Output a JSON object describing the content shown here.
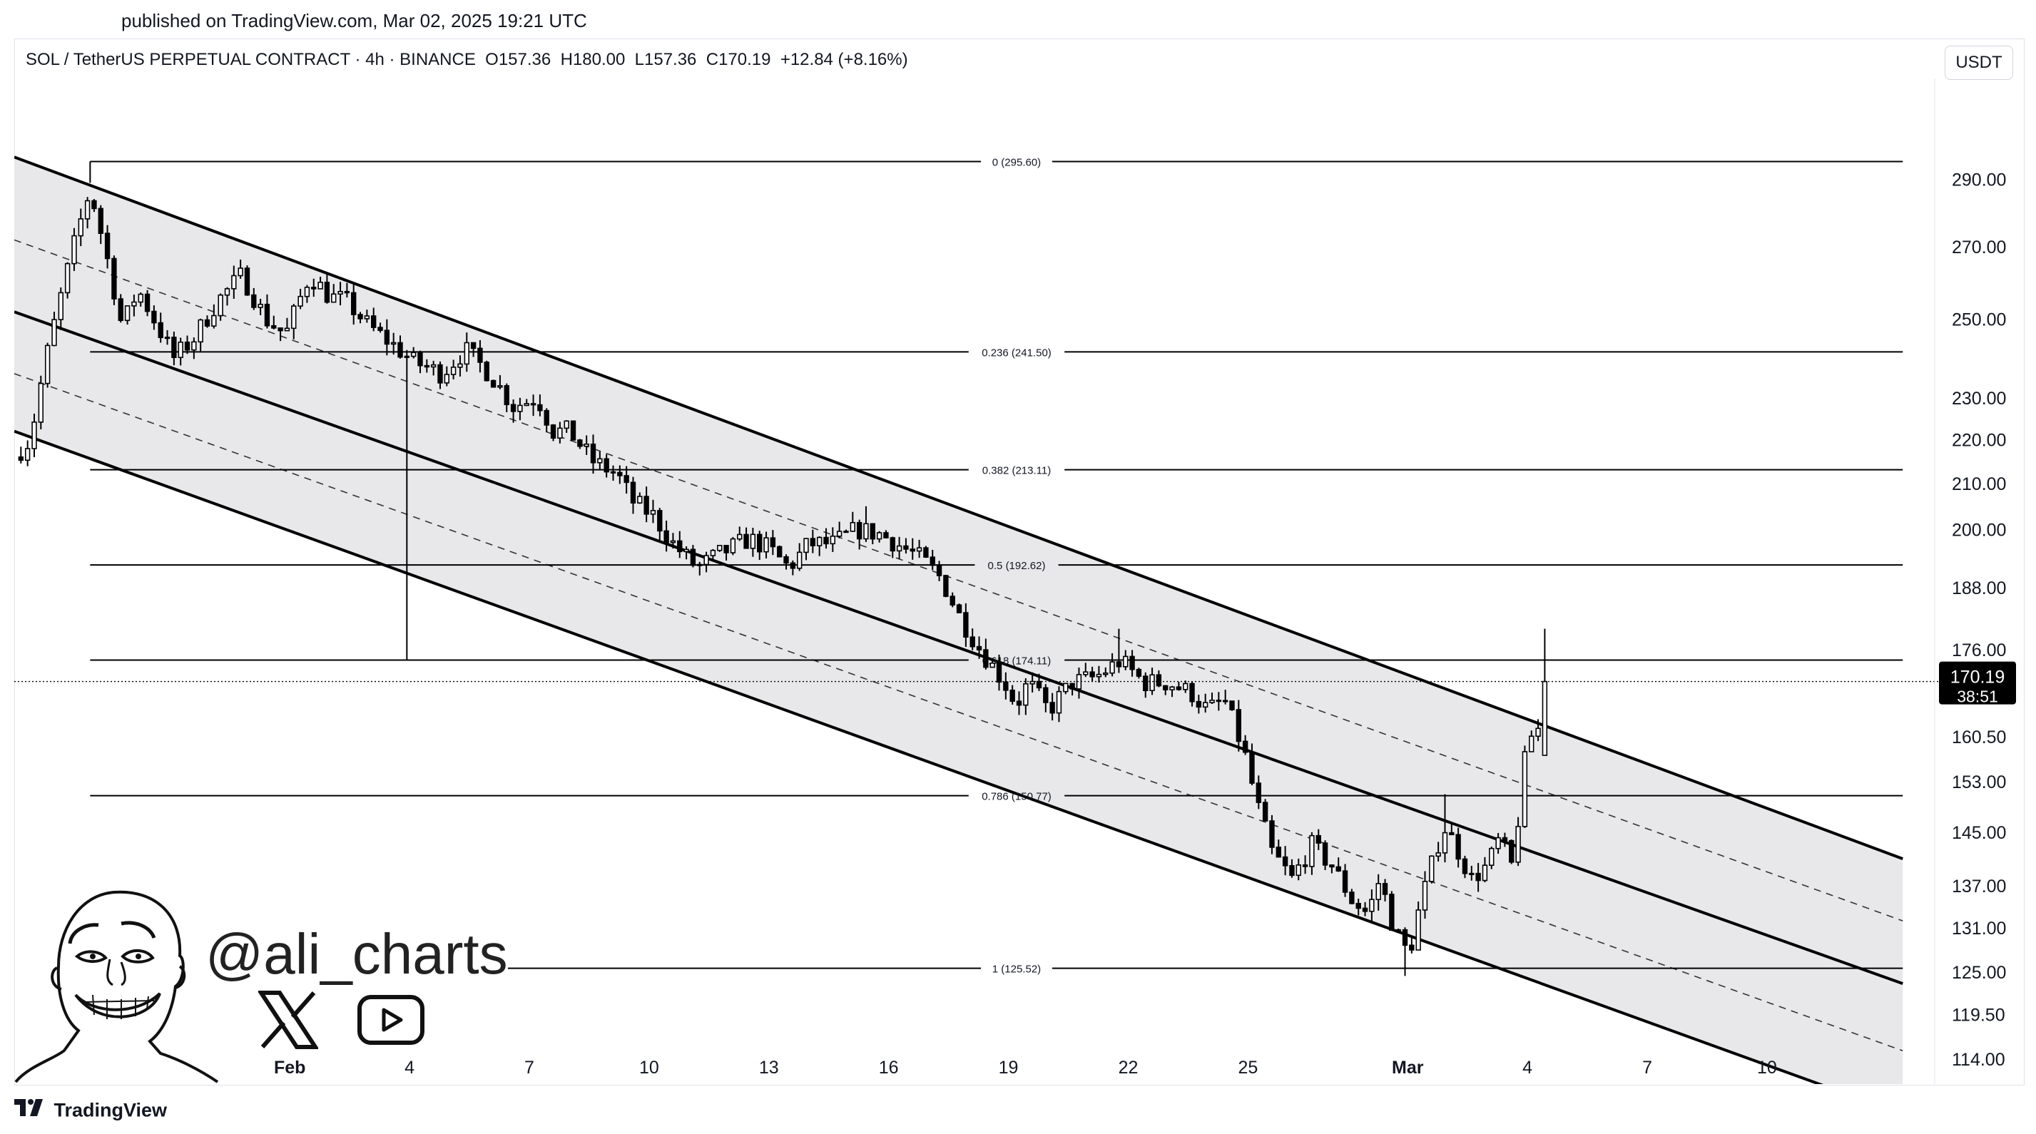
{
  "header": {
    "published": "published on TradingView.com, Mar 02, 2025 19:21 UTC",
    "symbol_line": "SOL / TetherUS PERPETUAL CONTRACT · 4h · BINANCE  O157.36  H180.00  L157.36  C170.19  +12.84 (+8.16%)",
    "currency": "USDT"
  },
  "watermark": {
    "handle": "@ali_charts",
    "icons": [
      "x-logo-icon",
      "youtube-icon",
      "avatar-cartoon"
    ]
  },
  "footer": {
    "brand": "TradingView"
  },
  "colors": {
    "candle_up": "#ffffff",
    "candle_down": "#000000",
    "channel_fill": "#e8e8ea",
    "text": "#131722"
  },
  "chart_data": {
    "type": "candlestick",
    "symbol": "SOL / TetherUS PERPETUAL CONTRACT",
    "interval": "4h",
    "exchange": "BINANCE",
    "last": {
      "open": 157.36,
      "high": 180.0,
      "low": 157.36,
      "close": 170.19,
      "change": 12.84,
      "change_pct": 8.16
    },
    "last_price_label": "170.19",
    "countdown_label": "38:51",
    "y_scale": "log",
    "y_range": [
      111,
      318
    ],
    "y_ticks": [
      "290.00",
      "270.00",
      "250.00",
      "230.00",
      "220.00",
      "210.00",
      "200.00",
      "188.00",
      "176.00",
      "160.50",
      "153.00",
      "145.00",
      "137.00",
      "131.00",
      "125.00",
      "119.50",
      "114.00"
    ],
    "x_range_days": [
      -6.9,
      41.2
    ],
    "x_ticks": [
      {
        "day": 0,
        "label": "Feb",
        "bold": true
      },
      {
        "day": 3,
        "label": "4"
      },
      {
        "day": 6,
        "label": "7"
      },
      {
        "day": 9,
        "label": "10"
      },
      {
        "day": 12,
        "label": "13"
      },
      {
        "day": 15,
        "label": "16"
      },
      {
        "day": 18,
        "label": "19"
      },
      {
        "day": 21,
        "label": "22"
      },
      {
        "day": 24,
        "label": "25"
      },
      {
        "day": 28,
        "label": "Mar",
        "bold": true
      },
      {
        "day": 31,
        "label": "4"
      },
      {
        "day": 34,
        "label": "7"
      },
      {
        "day": 37,
        "label": "10"
      }
    ],
    "fibonacci": {
      "from_day": -5.0,
      "to_day": 40.4,
      "levels": [
        {
          "label": "0 (295.60)",
          "value": 295.6
        },
        {
          "label": "0.236 (241.50)",
          "value": 241.5
        },
        {
          "label": "0.382 (213.11)",
          "value": 213.11
        },
        {
          "label": "0.5 (192.62)",
          "value": 192.62
        },
        {
          "label": "0.618 (174.11)",
          "value": 174.11
        },
        {
          "label": "0.786 (150.77)",
          "value": 150.77
        },
        {
          "label": "1 (125.52)",
          "value": 125.52
        }
      ]
    },
    "channel": {
      "upper_start": [
        -6.9,
        297
      ],
      "upper_end": [
        40.4,
        141
      ],
      "mid_start": [
        -6.9,
        252
      ],
      "mid_end": [
        40.4,
        123.5
      ],
      "lower_start": [
        -6.9,
        222
      ],
      "lower_end": [
        40.4,
        107.5
      ],
      "dashed": [
        {
          "start": [
            -6.9,
            272
          ],
          "end": [
            40.4,
            132
          ]
        },
        {
          "start": [
            -6.9,
            236
          ],
          "end": [
            40.4,
            115
          ]
        }
      ]
    },
    "anchor_points": [
      [
        -6.9,
        216
      ],
      [
        -6.5,
        220
      ],
      [
        -6.1,
        240
      ],
      [
        -5.6,
        262
      ],
      [
        -5.3,
        275
      ],
      [
        -5.0,
        287
      ],
      [
        -4.6,
        268
      ],
      [
        -4.2,
        248
      ],
      [
        -3.8,
        258
      ],
      [
        -3.3,
        248
      ],
      [
        -2.9,
        240
      ],
      [
        -2.4,
        245
      ],
      [
        -1.8,
        255
      ],
      [
        -1.2,
        262
      ],
      [
        -0.6,
        250
      ],
      [
        -0.1,
        246
      ],
      [
        0.5,
        262
      ],
      [
        1.0,
        256
      ],
      [
        1.4,
        255
      ],
      [
        2.0,
        248
      ],
      [
        2.5,
        244
      ],
      [
        3.1,
        239
      ],
      [
        3.8,
        236
      ],
      [
        4.4,
        242
      ],
      [
        5.0,
        236
      ],
      [
        5.6,
        228
      ],
      [
        6.2,
        230
      ],
      [
        6.6,
        222
      ],
      [
        7.0,
        222
      ],
      [
        7.6,
        215
      ],
      [
        8.2,
        212
      ],
      [
        8.6,
        206
      ],
      [
        9.1,
        203
      ],
      [
        9.6,
        197
      ],
      [
        10.2,
        192
      ],
      [
        10.8,
        195
      ],
      [
        11.5,
        198
      ],
      [
        12.0,
        196
      ],
      [
        12.5,
        192
      ],
      [
        13.0,
        197
      ],
      [
        13.6,
        197
      ],
      [
        14.2,
        200
      ],
      [
        14.8,
        199
      ],
      [
        15.4,
        196
      ],
      [
        15.8,
        194
      ],
      [
        16.3,
        190
      ],
      [
        16.8,
        182
      ],
      [
        17.3,
        176
      ],
      [
        17.9,
        170
      ],
      [
        18.2,
        166
      ],
      [
        18.5,
        170
      ],
      [
        19.0,
        165
      ],
      [
        19.6,
        170
      ],
      [
        20.2,
        171
      ],
      [
        20.8,
        174
      ],
      [
        21.4,
        170
      ],
      [
        22.0,
        170
      ],
      [
        22.6,
        168
      ],
      [
        23.0,
        165
      ],
      [
        23.4,
        167
      ],
      [
        23.9,
        158
      ],
      [
        24.2,
        150
      ],
      [
        24.6,
        142
      ],
      [
        25.1,
        138
      ],
      [
        25.6,
        143
      ],
      [
        26.1,
        140
      ],
      [
        26.6,
        135
      ],
      [
        27.0,
        133
      ],
      [
        27.3,
        138
      ],
      [
        27.6,
        132
      ],
      [
        27.9,
        128
      ],
      [
        28.1,
        129
      ],
      [
        28.3,
        134
      ],
      [
        28.6,
        140
      ],
      [
        28.9,
        146
      ],
      [
        29.2,
        143
      ],
      [
        29.6,
        138
      ],
      [
        30.0,
        140
      ],
      [
        30.3,
        144
      ],
      [
        30.6,
        140
      ],
      [
        30.75,
        146
      ],
      [
        31.0,
        160
      ],
      [
        31.3,
        162
      ],
      [
        31.5,
        170.19
      ]
    ]
  }
}
